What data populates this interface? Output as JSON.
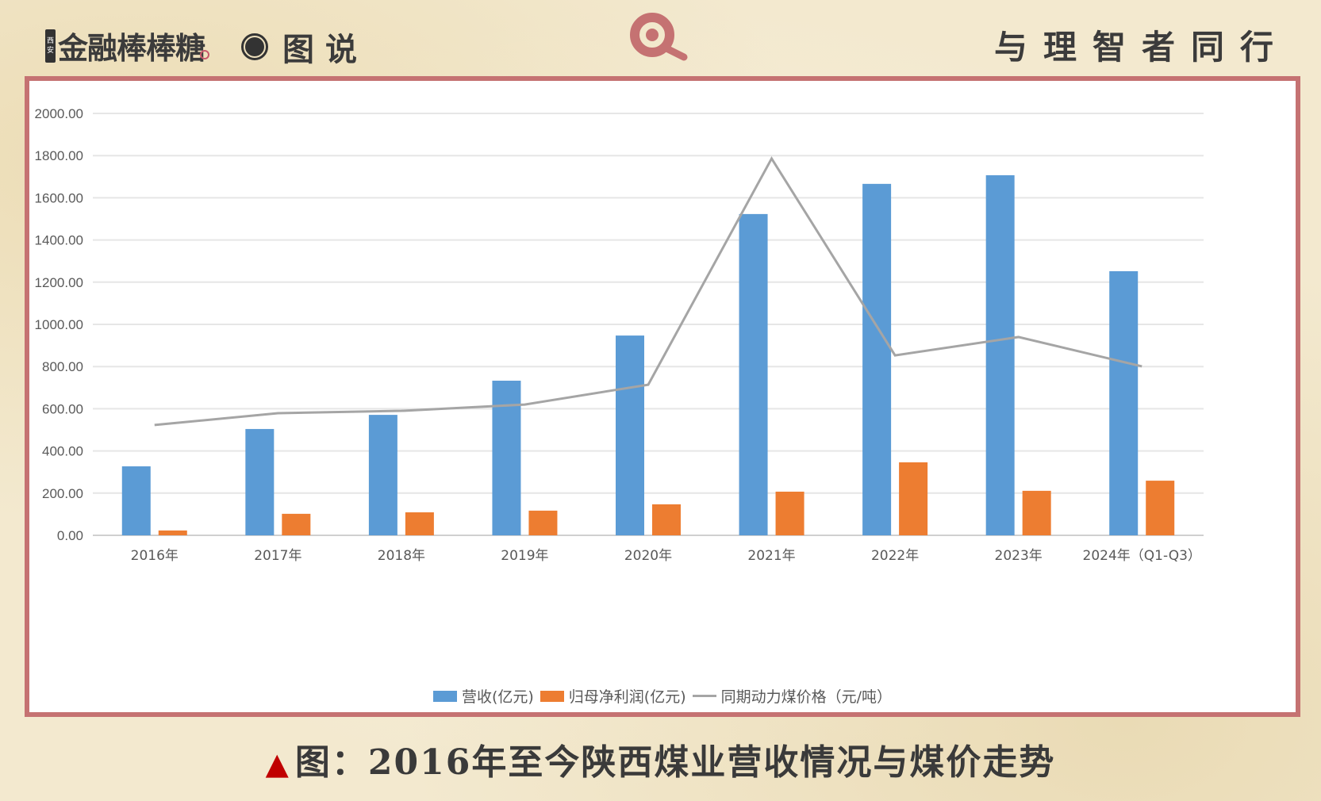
{
  "header": {
    "brand_tag": [
      "西",
      "安"
    ],
    "brand_name": "金融棒棒糖",
    "section": "图说",
    "slogan": "与理智者同行"
  },
  "caption": {
    "marker": "▲",
    "text": "图：2016年至今陕西煤业营收情况与煤价走势"
  },
  "colors": {
    "revenue": "#5B9BD5",
    "profit": "#ED7D31",
    "coal_price": "#A5A5A5",
    "frame": "#C57272",
    "brand_accent": "#C8576A"
  },
  "legend": {
    "revenue": "营收(亿元)",
    "profit": "归母净利润(亿元)",
    "coal_price": "同期动力煤价格（元/吨）"
  },
  "chart_data": {
    "type": "bar",
    "title": "2016年至今陕西煤业营收情况与煤价走势",
    "xlabel": "",
    "ylabel": "",
    "ylim": [
      0,
      2000
    ],
    "yticks": [
      "0.00",
      "200.00",
      "400.00",
      "600.00",
      "800.00",
      "1000.00",
      "1200.00",
      "1400.00",
      "1600.00",
      "1800.00",
      "2000.00"
    ],
    "grid": true,
    "legend_position": "bottom",
    "categories": [
      "2016年",
      "2017年",
      "2018年",
      "2019年",
      "2020年",
      "2021年",
      "2022年",
      "2023年",
      "2024年（Q1-Q3）"
    ],
    "series": [
      {
        "name": "营收(亿元)",
        "type": "bar",
        "values": [
          327,
          504,
          571,
          733,
          947,
          1523,
          1666,
          1707,
          1252
        ]
      },
      {
        "name": "归母净利润(亿元)",
        "type": "bar",
        "values": [
          23,
          102,
          109,
          117,
          147,
          207,
          346,
          211,
          259
        ]
      },
      {
        "name": "同期动力煤价格（元/吨）",
        "type": "line",
        "values": [
          523,
          579,
          590,
          620,
          714,
          1786,
          853,
          940,
          801
        ]
      }
    ]
  }
}
